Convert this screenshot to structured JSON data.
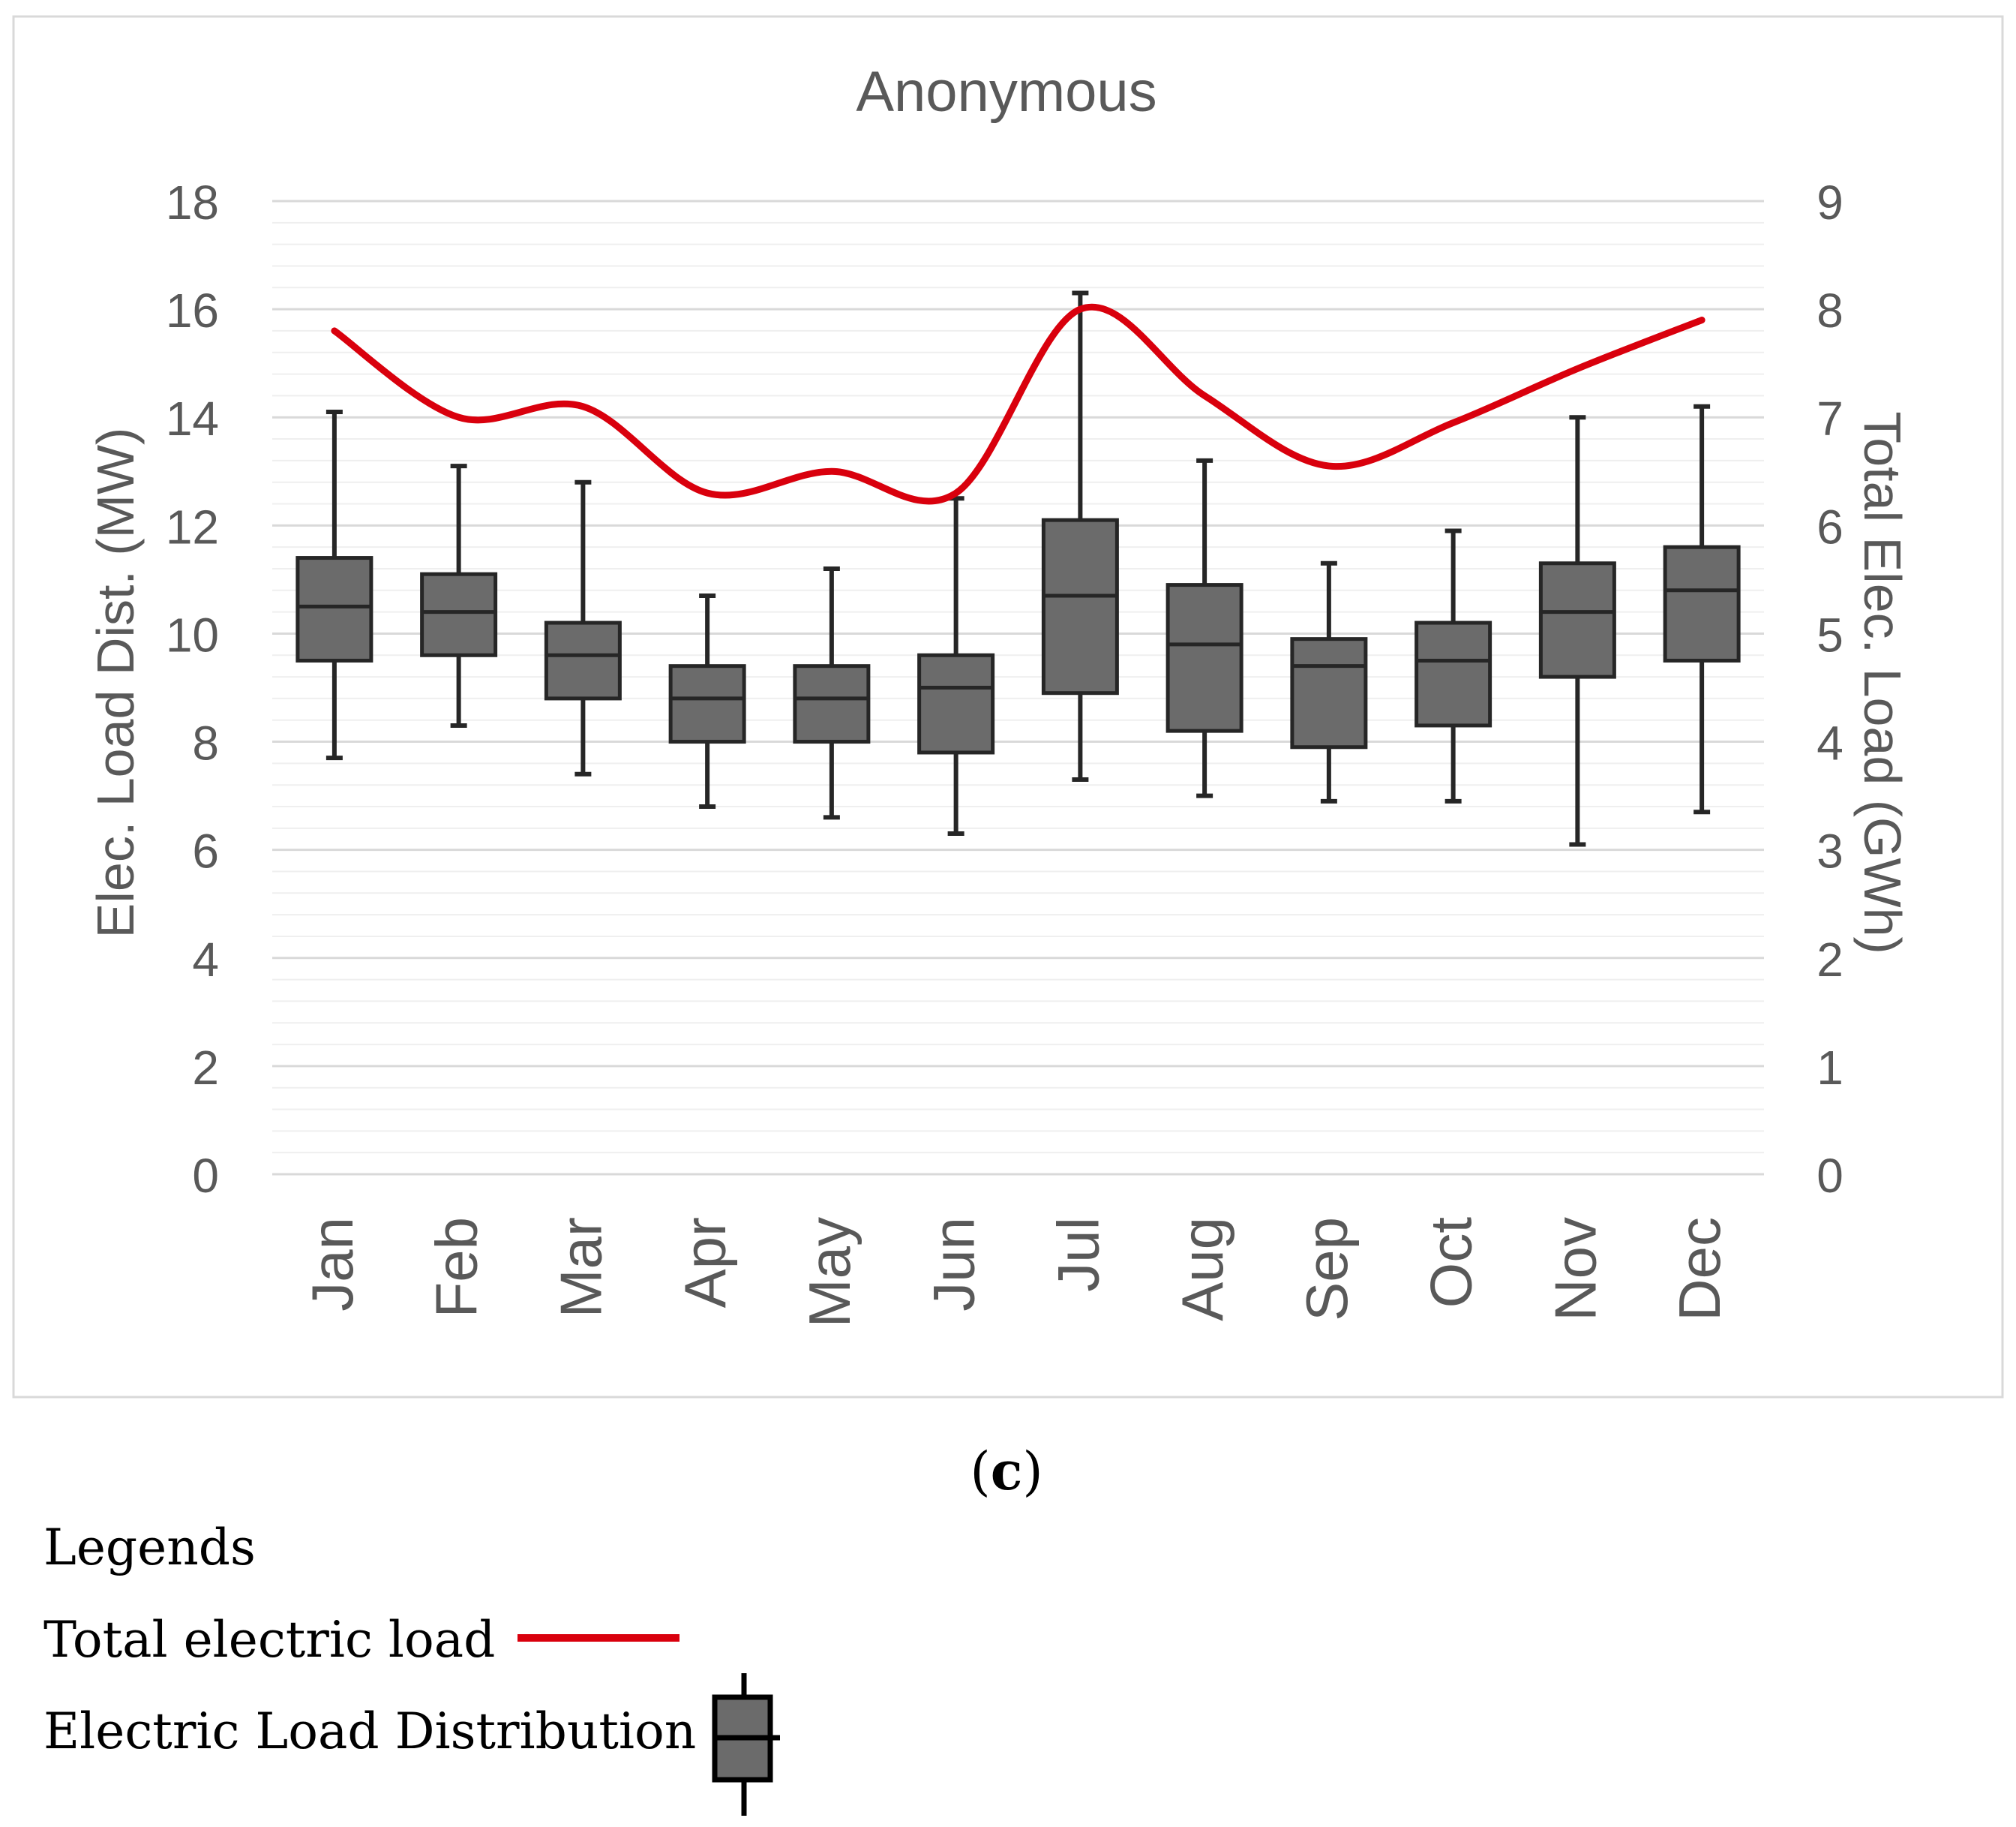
{
  "chart_data": {
    "type": "box",
    "title": "Anonymous",
    "panel_label": "(c)",
    "panel_letter": "c",
    "categories": [
      "Jan",
      "Feb",
      "Mar",
      "Apr",
      "May",
      "Jun",
      "Jul",
      "Aug",
      "Sep",
      "Oct",
      "Nov",
      "Dec"
    ],
    "ylabel_left": "Elec. Load Dist. (MW)",
    "ylabel_right": "Total Elec. Load (GWh)",
    "ylim_left": [
      0,
      18
    ],
    "ylim_right": [
      0,
      9
    ],
    "yticks_left": [
      "0",
      "2",
      "4",
      "6",
      "8",
      "10",
      "12",
      "14",
      "16",
      "18"
    ],
    "yticks_right": [
      "0",
      "1",
      "2",
      "3",
      "4",
      "5",
      "6",
      "7",
      "8",
      "9"
    ],
    "minor_grid_step": 0.4,
    "box_series": {
      "name": "Electric Load Distribution",
      "min": [
        7.7,
        8.3,
        7.4,
        6.8,
        6.6,
        6.3,
        7.3,
        7.0,
        6.9,
        6.9,
        6.1,
        6.7
      ],
      "q1": [
        9.5,
        9.6,
        8.8,
        8.0,
        8.0,
        7.8,
        8.9,
        8.2,
        7.9,
        8.3,
        9.2,
        9.5
      ],
      "median": [
        10.5,
        10.4,
        9.6,
        8.8,
        8.8,
        9.0,
        10.7,
        9.8,
        9.4,
        9.5,
        10.4,
        10.8
      ],
      "q3": [
        11.4,
        11.1,
        10.2,
        9.4,
        9.4,
        9.6,
        12.1,
        10.9,
        9.9,
        10.2,
        11.3,
        11.6
      ],
      "max": [
        14.1,
        13.1,
        12.8,
        10.7,
        11.2,
        12.5,
        16.3,
        13.2,
        11.3,
        11.9,
        14.0,
        14.2
      ]
    },
    "line_series": {
      "name": "Total electric load",
      "axis": "right",
      "unit": "GWh",
      "values": [
        7.8,
        7.0,
        7.1,
        6.3,
        6.5,
        6.3,
        8.0,
        7.2,
        6.55,
        6.95,
        7.45,
        7.9
      ]
    }
  },
  "legend": {
    "heading": "Legends",
    "items": [
      {
        "label": "Total electric load"
      },
      {
        "label": "Electric Load Distribution"
      }
    ]
  },
  "colors": {
    "line": "#d9000d",
    "box_fill": "#6b6b6b",
    "box_stroke": "#262626",
    "text": "#595959",
    "grid_major": "#d9d9d9",
    "grid_minor": "#efefef",
    "frame": "#d9d9d9"
  }
}
